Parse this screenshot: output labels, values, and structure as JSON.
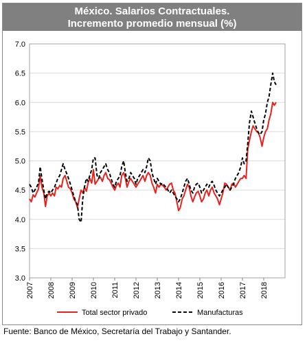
{
  "header": {
    "title_line1": "México. Salarios Contractuales.",
    "title_line2": "Incremento promedio mensual (%)"
  },
  "source_note": "Fuente: Banco de México, Secretaría del Trabajo y Santander.",
  "colors": {
    "title_bg": "#808080",
    "series_red": "#e8211d",
    "series_black": "#000000",
    "grid": "#d9d9d9"
  },
  "chart_data": {
    "type": "line",
    "title": "México. Salarios Contractuales. Incremento promedio mensual (%)",
    "xlabel": "",
    "ylabel": "",
    "ylim": [
      3.0,
      7.0
    ],
    "xlim": [
      2007,
      2019
    ],
    "x_ticks": [
      "2007",
      "2008",
      "2009",
      "2010",
      "2011",
      "2012",
      "2013",
      "2014",
      "2015",
      "2016",
      "2017",
      "2018"
    ],
    "y_ticks": [
      "3.0",
      "3.5",
      "4.0",
      "4.5",
      "5.0",
      "5.5",
      "6.0",
      "6.5",
      "7.0"
    ],
    "grid": "horizontal",
    "legend_position": "bottom",
    "series": [
      {
        "name": "Total sector privado",
        "color": "#e8211d",
        "style": "solid",
        "points": [
          [
            2007.0,
            4.35
          ],
          [
            2007.08,
            4.3
          ],
          [
            2007.17,
            4.42
          ],
          [
            2007.25,
            4.38
          ],
          [
            2007.33,
            4.45
          ],
          [
            2007.42,
            4.52
          ],
          [
            2007.5,
            4.75
          ],
          [
            2007.58,
            4.55
          ],
          [
            2007.67,
            4.45
          ],
          [
            2007.75,
            4.22
          ],
          [
            2007.83,
            4.4
          ],
          [
            2007.92,
            4.45
          ],
          [
            2008.0,
            4.4
          ],
          [
            2008.08,
            4.45
          ],
          [
            2008.17,
            4.4
          ],
          [
            2008.25,
            4.55
          ],
          [
            2008.33,
            4.52
          ],
          [
            2008.42,
            4.58
          ],
          [
            2008.5,
            4.55
          ],
          [
            2008.58,
            4.7
          ],
          [
            2008.67,
            4.75
          ],
          [
            2008.75,
            4.65
          ],
          [
            2008.83,
            4.55
          ],
          [
            2008.92,
            4.52
          ],
          [
            2009.0,
            4.45
          ],
          [
            2009.08,
            4.35
          ],
          [
            2009.17,
            4.3
          ],
          [
            2009.25,
            4.2
          ],
          [
            2009.33,
            4.35
          ],
          [
            2009.42,
            4.5
          ],
          [
            2009.5,
            4.45
          ],
          [
            2009.58,
            4.55
          ],
          [
            2009.67,
            4.48
          ],
          [
            2009.75,
            4.62
          ],
          [
            2009.83,
            4.7
          ],
          [
            2009.92,
            4.62
          ],
          [
            2010.0,
            4.85
          ],
          [
            2010.08,
            4.6
          ],
          [
            2010.17,
            4.65
          ],
          [
            2010.25,
            4.7
          ],
          [
            2010.33,
            4.72
          ],
          [
            2010.42,
            4.65
          ],
          [
            2010.5,
            4.75
          ],
          [
            2010.58,
            4.8
          ],
          [
            2010.67,
            4.7
          ],
          [
            2010.75,
            4.68
          ],
          [
            2010.83,
            4.62
          ],
          [
            2010.92,
            4.55
          ],
          [
            2011.0,
            4.5
          ],
          [
            2011.08,
            4.58
          ],
          [
            2011.17,
            4.62
          ],
          [
            2011.25,
            4.55
          ],
          [
            2011.33,
            4.75
          ],
          [
            2011.42,
            4.8
          ],
          [
            2011.5,
            4.7
          ],
          [
            2011.58,
            4.55
          ],
          [
            2011.67,
            4.65
          ],
          [
            2011.75,
            4.7
          ],
          [
            2011.83,
            4.65
          ],
          [
            2011.92,
            4.6
          ],
          [
            2012.0,
            4.55
          ],
          [
            2012.08,
            4.6
          ],
          [
            2012.17,
            4.65
          ],
          [
            2012.25,
            4.7
          ],
          [
            2012.33,
            4.75
          ],
          [
            2012.42,
            4.65
          ],
          [
            2012.5,
            4.75
          ],
          [
            2012.58,
            4.8
          ],
          [
            2012.67,
            4.75
          ],
          [
            2012.75,
            4.62
          ],
          [
            2012.83,
            4.55
          ],
          [
            2012.92,
            4.45
          ],
          [
            2013.0,
            4.6
          ],
          [
            2013.08,
            4.55
          ],
          [
            2013.17,
            4.6
          ],
          [
            2013.25,
            4.58
          ],
          [
            2013.33,
            4.55
          ],
          [
            2013.42,
            4.5
          ],
          [
            2013.5,
            4.55
          ],
          [
            2013.58,
            4.6
          ],
          [
            2013.67,
            4.62
          ],
          [
            2013.75,
            4.5
          ],
          [
            2013.83,
            4.45
          ],
          [
            2013.92,
            4.3
          ],
          [
            2014.0,
            4.15
          ],
          [
            2014.08,
            4.2
          ],
          [
            2014.17,
            4.35
          ],
          [
            2014.25,
            4.4
          ],
          [
            2014.33,
            4.5
          ],
          [
            2014.42,
            4.6
          ],
          [
            2014.5,
            4.55
          ],
          [
            2014.58,
            4.4
          ],
          [
            2014.67,
            4.3
          ],
          [
            2014.75,
            4.38
          ],
          [
            2014.83,
            4.45
          ],
          [
            2014.92,
            4.48
          ],
          [
            2015.0,
            4.4
          ],
          [
            2015.08,
            4.3
          ],
          [
            2015.17,
            4.35
          ],
          [
            2015.25,
            4.45
          ],
          [
            2015.33,
            4.5
          ],
          [
            2015.42,
            4.4
          ],
          [
            2015.5,
            4.5
          ],
          [
            2015.58,
            4.55
          ],
          [
            2015.67,
            4.45
          ],
          [
            2015.75,
            4.4
          ],
          [
            2015.83,
            4.35
          ],
          [
            2015.92,
            4.25
          ],
          [
            2016.0,
            4.35
          ],
          [
            2016.08,
            4.45
          ],
          [
            2016.17,
            4.62
          ],
          [
            2016.25,
            4.6
          ],
          [
            2016.33,
            4.55
          ],
          [
            2016.42,
            4.5
          ],
          [
            2016.5,
            4.6
          ],
          [
            2016.58,
            4.62
          ],
          [
            2016.67,
            4.55
          ],
          [
            2016.75,
            4.6
          ],
          [
            2016.83,
            4.65
          ],
          [
            2016.92,
            4.7
          ],
          [
            2017.0,
            4.7
          ],
          [
            2017.08,
            4.75
          ],
          [
            2017.17,
            4.7
          ],
          [
            2017.25,
            5.2
          ],
          [
            2017.33,
            5.35
          ],
          [
            2017.42,
            5.5
          ],
          [
            2017.5,
            5.6
          ],
          [
            2017.58,
            5.55
          ],
          [
            2017.67,
            5.5
          ],
          [
            2017.75,
            5.48
          ],
          [
            2017.83,
            5.4
          ],
          [
            2017.92,
            5.25
          ],
          [
            2018.0,
            5.4
          ],
          [
            2018.08,
            5.5
          ],
          [
            2018.17,
            5.55
          ],
          [
            2018.25,
            5.7
          ],
          [
            2018.33,
            5.8
          ],
          [
            2018.42,
            6.0
          ],
          [
            2018.5,
            5.95
          ],
          [
            2018.58,
            6.0
          ]
        ]
      },
      {
        "name": "Manufacturas",
        "color": "#000000",
        "style": "dashed",
        "points": [
          [
            2007.0,
            4.6
          ],
          [
            2007.08,
            4.55
          ],
          [
            2007.17,
            4.45
          ],
          [
            2007.25,
            4.5
          ],
          [
            2007.33,
            4.55
          ],
          [
            2007.42,
            4.62
          ],
          [
            2007.5,
            4.9
          ],
          [
            2007.58,
            4.7
          ],
          [
            2007.67,
            4.5
          ],
          [
            2007.75,
            4.35
          ],
          [
            2007.83,
            4.45
          ],
          [
            2007.92,
            4.48
          ],
          [
            2008.0,
            4.45
          ],
          [
            2008.08,
            4.5
          ],
          [
            2008.17,
            4.55
          ],
          [
            2008.25,
            4.62
          ],
          [
            2008.33,
            4.7
          ],
          [
            2008.42,
            4.75
          ],
          [
            2008.5,
            4.85
          ],
          [
            2008.58,
            4.95
          ],
          [
            2008.67,
            4.85
          ],
          [
            2008.75,
            4.78
          ],
          [
            2008.83,
            4.7
          ],
          [
            2008.92,
            4.6
          ],
          [
            2009.0,
            4.5
          ],
          [
            2009.08,
            4.4
          ],
          [
            2009.17,
            4.3
          ],
          [
            2009.25,
            4.25
          ],
          [
            2009.33,
            4.0
          ],
          [
            2009.42,
            3.95
          ],
          [
            2009.5,
            4.35
          ],
          [
            2009.58,
            4.55
          ],
          [
            2009.67,
            4.7
          ],
          [
            2009.75,
            4.65
          ],
          [
            2009.83,
            4.75
          ],
          [
            2009.92,
            4.85
          ],
          [
            2010.0,
            5.05
          ],
          [
            2010.08,
            5.05
          ],
          [
            2010.17,
            4.75
          ],
          [
            2010.25,
            4.7
          ],
          [
            2010.33,
            4.8
          ],
          [
            2010.42,
            4.85
          ],
          [
            2010.5,
            4.9
          ],
          [
            2010.58,
            4.95
          ],
          [
            2010.67,
            4.85
          ],
          [
            2010.75,
            4.8
          ],
          [
            2010.83,
            4.7
          ],
          [
            2010.92,
            4.6
          ],
          [
            2011.0,
            4.55
          ],
          [
            2011.08,
            4.65
          ],
          [
            2011.17,
            4.7
          ],
          [
            2011.25,
            4.75
          ],
          [
            2011.33,
            4.9
          ],
          [
            2011.42,
            5.0
          ],
          [
            2011.5,
            4.8
          ],
          [
            2011.58,
            4.65
          ],
          [
            2011.67,
            4.7
          ],
          [
            2011.75,
            4.8
          ],
          [
            2011.83,
            4.75
          ],
          [
            2011.92,
            4.7
          ],
          [
            2012.0,
            4.6
          ],
          [
            2012.08,
            4.7
          ],
          [
            2012.17,
            4.75
          ],
          [
            2012.25,
            4.8
          ],
          [
            2012.33,
            4.85
          ],
          [
            2012.42,
            4.8
          ],
          [
            2012.5,
            4.9
          ],
          [
            2012.58,
            5.05
          ],
          [
            2012.67,
            5.0
          ],
          [
            2012.75,
            4.8
          ],
          [
            2012.83,
            4.7
          ],
          [
            2012.92,
            4.6
          ],
          [
            2013.0,
            4.7
          ],
          [
            2013.08,
            4.65
          ],
          [
            2013.17,
            4.6
          ],
          [
            2013.25,
            4.62
          ],
          [
            2013.33,
            4.58
          ],
          [
            2013.42,
            4.55
          ],
          [
            2013.5,
            4.5
          ],
          [
            2013.58,
            4.45
          ],
          [
            2013.67,
            4.5
          ],
          [
            2013.75,
            4.45
          ],
          [
            2013.83,
            4.4
          ],
          [
            2013.92,
            4.35
          ],
          [
            2014.0,
            4.3
          ],
          [
            2014.08,
            4.35
          ],
          [
            2014.17,
            4.45
          ],
          [
            2014.25,
            4.55
          ],
          [
            2014.33,
            4.65
          ],
          [
            2014.42,
            4.7
          ],
          [
            2014.5,
            4.6
          ],
          [
            2014.58,
            4.5
          ],
          [
            2014.67,
            4.45
          ],
          [
            2014.75,
            4.55
          ],
          [
            2014.83,
            4.6
          ],
          [
            2014.92,
            4.62
          ],
          [
            2015.0,
            4.55
          ],
          [
            2015.08,
            4.45
          ],
          [
            2015.17,
            4.5
          ],
          [
            2015.25,
            4.55
          ],
          [
            2015.33,
            4.6
          ],
          [
            2015.42,
            4.55
          ],
          [
            2015.5,
            4.62
          ],
          [
            2015.58,
            4.65
          ],
          [
            2015.67,
            4.58
          ],
          [
            2015.75,
            4.5
          ],
          [
            2015.83,
            4.45
          ],
          [
            2015.92,
            4.4
          ],
          [
            2016.0,
            4.45
          ],
          [
            2016.08,
            4.5
          ],
          [
            2016.17,
            4.55
          ],
          [
            2016.25,
            4.6
          ],
          [
            2016.33,
            4.55
          ],
          [
            2016.42,
            4.5
          ],
          [
            2016.5,
            4.55
          ],
          [
            2016.58,
            4.6
          ],
          [
            2016.67,
            4.7
          ],
          [
            2016.75,
            4.75
          ],
          [
            2016.83,
            4.8
          ],
          [
            2016.92,
            4.9
          ],
          [
            2017.0,
            5.05
          ],
          [
            2017.08,
            4.95
          ],
          [
            2017.17,
            5.0
          ],
          [
            2017.25,
            5.3
          ],
          [
            2017.33,
            5.65
          ],
          [
            2017.42,
            5.85
          ],
          [
            2017.5,
            5.75
          ],
          [
            2017.58,
            5.65
          ],
          [
            2017.67,
            5.55
          ],
          [
            2017.75,
            5.48
          ],
          [
            2017.83,
            5.45
          ],
          [
            2017.92,
            5.5
          ],
          [
            2018.0,
            5.7
          ],
          [
            2018.08,
            5.8
          ],
          [
            2018.17,
            6.0
          ],
          [
            2018.25,
            6.1
          ],
          [
            2018.33,
            6.3
          ],
          [
            2018.42,
            6.5
          ],
          [
            2018.5,
            6.35
          ],
          [
            2018.58,
            6.3
          ]
        ]
      }
    ]
  }
}
